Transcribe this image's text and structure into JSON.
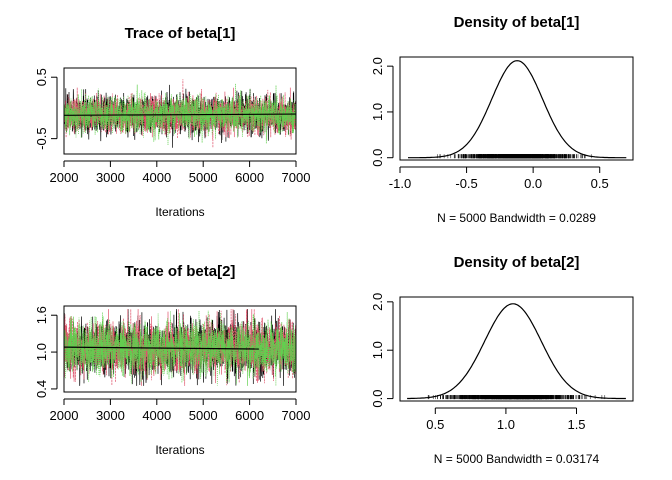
{
  "colors": {
    "chain1": "#000000",
    "chain2": "#DF536B",
    "chain3": "#61D04F",
    "frame": "#000000"
  },
  "chart_data": [
    {
      "type": "line",
      "panel": "trace",
      "title": "Trace of beta[1]",
      "xlabel": "Iterations",
      "ylabel": "",
      "xlim": [
        2000,
        7000
      ],
      "ylim": [
        -0.75,
        0.65
      ],
      "x_ticks": [
        2000,
        3000,
        4000,
        5000,
        6000,
        7000
      ],
      "y_ticks": [
        -0.5,
        0.5
      ],
      "y_tick_labels": [
        "-0.5",
        "0.5"
      ],
      "series_colors": [
        "#000000",
        "#DF536B",
        "#61D04F"
      ],
      "iterations": [
        2001,
        7000
      ],
      "center": -0.11,
      "spread": 0.14,
      "lower_extreme": -0.72,
      "upper_extreme": 0.58,
      "running_mean": {
        "x": [
          2001,
          7000
        ],
        "y": [
          -0.12,
          -0.1
        ]
      }
    },
    {
      "type": "line",
      "panel": "density",
      "title": "Density of beta[1]",
      "xlabel": "N = 5000   Bandwidth = 0.0289",
      "ylabel": "",
      "xlim": [
        -1.0,
        0.75
      ],
      "ylim": [
        -0.05,
        2.2
      ],
      "x_ticks": [
        -1.0,
        -0.5,
        0.0,
        0.5
      ],
      "x_tick_labels": [
        "-1.0",
        "-0.5",
        "0.0",
        "0.5"
      ],
      "y_ticks": [
        0.0,
        1.0,
        2.0
      ],
      "y_tick_labels": [
        "0.0",
        "1.0",
        "2.0"
      ],
      "support": [
        -0.94,
        0.7
      ],
      "mode": -0.12,
      "peak_density": 2.12,
      "sd": 0.19,
      "rug_range": [
        -0.72,
        0.58
      ]
    },
    {
      "type": "line",
      "panel": "trace",
      "title": "Trace of beta[2]",
      "xlabel": "Iterations",
      "ylabel": "",
      "xlim": [
        2000,
        7000
      ],
      "ylim": [
        0.35,
        1.75
      ],
      "x_ticks": [
        2000,
        3000,
        4000,
        5000,
        6000,
        7000
      ],
      "y_ticks": [
        0.4,
        1.0,
        1.6
      ],
      "y_tick_labels": [
        "0.4",
        "1.0",
        "1.6"
      ],
      "series_colors": [
        "#000000",
        "#DF536B",
        "#61D04F"
      ],
      "iterations": [
        2001,
        7000
      ],
      "center": 1.06,
      "spread": 0.2,
      "lower_extreme": 0.45,
      "upper_extreme": 1.7,
      "running_mean": {
        "x": [
          2001,
          6200
        ],
        "y": [
          1.08,
          1.05
        ]
      }
    },
    {
      "type": "line",
      "panel": "density",
      "title": "Density of beta[2]",
      "xlabel": "N = 5000   Bandwidth = 0.03174",
      "ylabel": "",
      "xlim": [
        0.25,
        1.9
      ],
      "ylim": [
        -0.05,
        2.1
      ],
      "x_ticks": [
        0.5,
        1.0,
        1.5
      ],
      "x_tick_labels": [
        "0.5",
        "1.0",
        "1.5"
      ],
      "y_ticks": [
        0.0,
        1.0,
        2.0
      ],
      "y_tick_labels": [
        "0.0",
        "1.0",
        "2.0"
      ],
      "support": [
        0.3,
        1.85
      ],
      "mode": 1.05,
      "peak_density": 1.96,
      "sd": 0.2,
      "rug_range": [
        0.45,
        1.7
      ]
    }
  ]
}
